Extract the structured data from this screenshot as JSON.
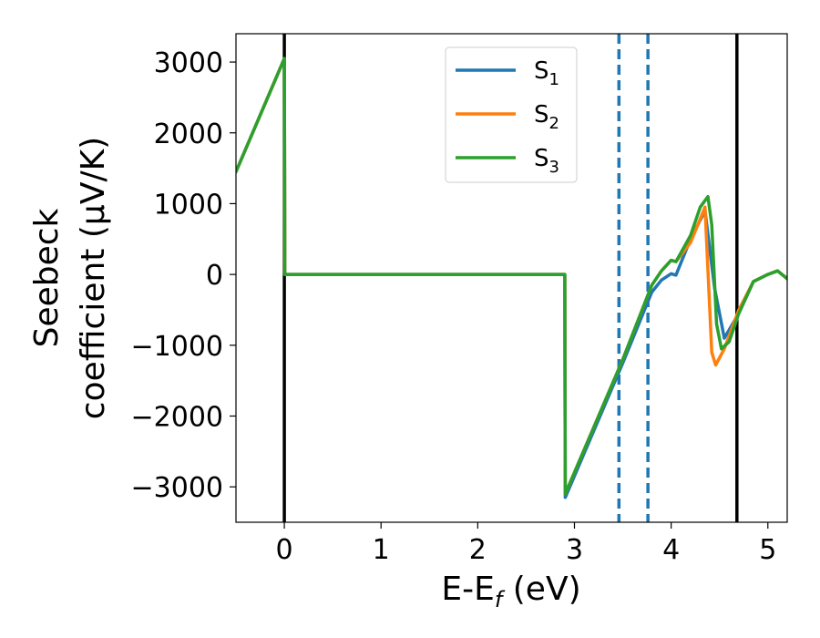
{
  "chart_data": {
    "type": "line",
    "xlabel": "E-E_f (eV)",
    "xlabel_parts": {
      "base": "E-E",
      "sub": "f",
      "rest": " (eV)"
    },
    "ylabel_line1": "Seebeck",
    "ylabel_line2": "coefficient  (μV/K)",
    "xlim": [
      -0.5,
      5.2
    ],
    "ylim": [
      -3500,
      3400
    ],
    "xticks": [
      0,
      1,
      2,
      3,
      4,
      5
    ],
    "xtick_labels": [
      "0",
      "1",
      "2",
      "3",
      "4",
      "5"
    ],
    "yticks": [
      -3000,
      -2000,
      -1000,
      0,
      1000,
      2000,
      3000
    ],
    "ytick_labels": [
      "−3000",
      "−2000",
      "−1000",
      "0",
      "1000",
      "2000",
      "3000"
    ],
    "grid": false,
    "legend_position": "top-center",
    "vertical_lines": [
      {
        "x": 0,
        "style": "solid",
        "color": "#000000"
      },
      {
        "x": 4.68,
        "style": "solid",
        "color": "#000000"
      },
      {
        "x": 3.46,
        "style": "dashed",
        "color": "#1f77b4"
      },
      {
        "x": 3.76,
        "style": "dashed",
        "color": "#1f77b4"
      }
    ],
    "series": [
      {
        "name": "S₁",
        "label_base": "S",
        "label_sub": "1",
        "color": "#1f77b4",
        "x": [
          -0.5,
          0,
          0.005,
          2.9,
          2.905,
          3.5,
          3.8,
          3.9,
          4.0,
          4.05,
          4.2,
          4.35,
          4.45,
          4.55,
          4.7,
          4.85,
          5.0,
          5.1,
          5.2
        ],
        "y": [
          1450,
          3050,
          0,
          0,
          -3150,
          -1250,
          -250,
          -80,
          10,
          -10,
          500,
          900,
          -200,
          -900,
          -550,
          -100,
          0,
          50,
          -60
        ]
      },
      {
        "name": "S₂",
        "label_base": "S",
        "label_sub": "2",
        "color": "#ff7f0e",
        "x": [
          -0.5,
          0,
          0.005,
          2.9,
          2.905,
          3.5,
          3.8,
          3.9,
          4.0,
          4.05,
          4.2,
          4.35,
          4.42,
          4.46,
          4.55,
          4.7,
          4.85,
          5.0,
          5.1,
          5.2
        ],
        "y": [
          1450,
          3050,
          0,
          0,
          -3100,
          -1200,
          -150,
          50,
          200,
          180,
          450,
          950,
          -1100,
          -1280,
          -1050,
          -500,
          -100,
          0,
          50,
          -60
        ]
      },
      {
        "name": "S₃",
        "label_base": "S",
        "label_sub": "3",
        "color": "#2ca02c",
        "x": [
          -0.5,
          0,
          0.005,
          2.9,
          2.905,
          3.5,
          3.8,
          3.9,
          4.0,
          4.05,
          4.2,
          4.3,
          4.38,
          4.42,
          4.47,
          4.52,
          4.6,
          4.7,
          4.85,
          5.0,
          5.1,
          5.2
        ],
        "y": [
          1450,
          3050,
          0,
          0,
          -3100,
          -1200,
          -150,
          50,
          200,
          180,
          550,
          950,
          1100,
          700,
          -700,
          -1050,
          -950,
          -550,
          -100,
          0,
          50,
          -60
        ]
      }
    ]
  }
}
